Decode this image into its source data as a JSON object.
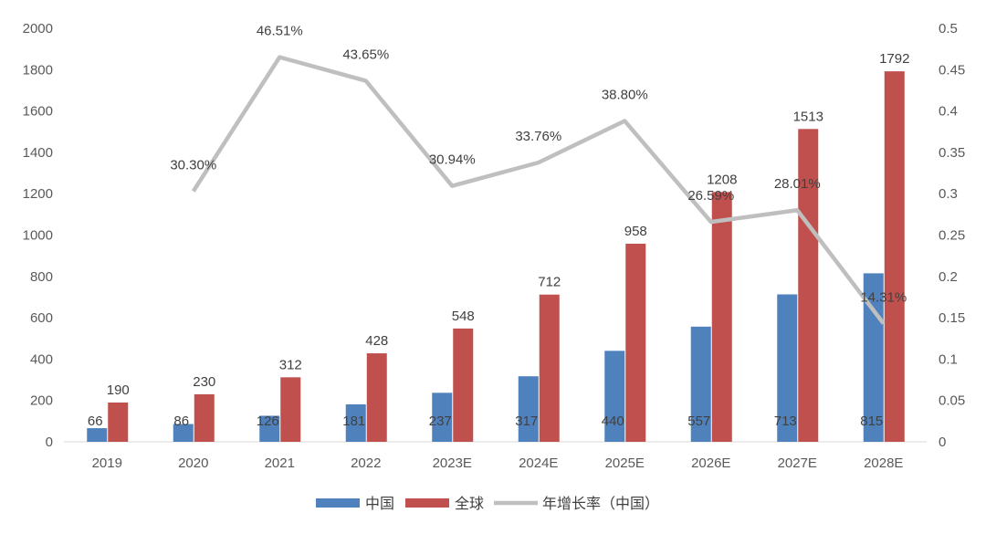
{
  "chart_data": {
    "type": "bar",
    "title": "",
    "xlabel": "",
    "ylabel": "",
    "categories": [
      "2019",
      "2020",
      "2021",
      "2022",
      "2023E",
      "2024E",
      "2025E",
      "2026E",
      "2027E",
      "2028E"
    ],
    "series": [
      {
        "name": "中国",
        "type": "bar",
        "axis": "left",
        "color": "#4f81bd",
        "values": [
          66,
          86,
          126,
          181,
          237,
          317,
          440,
          557,
          713,
          815
        ],
        "labels": [
          "66",
          "86",
          "126",
          "181",
          "237",
          "317",
          "440",
          "557",
          "713",
          "815"
        ]
      },
      {
        "name": "全球",
        "type": "bar",
        "axis": "left",
        "color": "#c0504d",
        "values": [
          190,
          230,
          312,
          428,
          548,
          712,
          958,
          1208,
          1513,
          1792
        ],
        "labels": [
          "190",
          "230",
          "312",
          "428",
          "548",
          "712",
          "958",
          "1208",
          "1513",
          "1792"
        ]
      },
      {
        "name": "年增长率（中国）",
        "type": "line",
        "axis": "right",
        "color": "#bfbfbf",
        "values": [
          null,
          0.303,
          0.4651,
          0.4365,
          0.3094,
          0.3376,
          0.388,
          0.2659,
          0.2801,
          0.1431
        ],
        "labels": [
          null,
          "30.30%",
          "46.51%",
          "43.65%",
          "30.94%",
          "33.76%",
          "38.80%",
          "26.59%",
          "28.01%",
          "14.31%"
        ]
      }
    ],
    "y_left": {
      "min": 0,
      "max": 2000,
      "ticks": [
        "0",
        "200",
        "400",
        "600",
        "800",
        "1000",
        "1200",
        "1400",
        "1600",
        "1800",
        "2000"
      ]
    },
    "y_right": {
      "min": 0,
      "max": 0.5,
      "ticks": [
        "0",
        "0.05",
        "0.1",
        "0.15",
        "0.2",
        "0.25",
        "0.3",
        "0.35",
        "0.4",
        "0.45",
        "0.5"
      ]
    },
    "grid": false,
    "legend_position": "bottom"
  }
}
